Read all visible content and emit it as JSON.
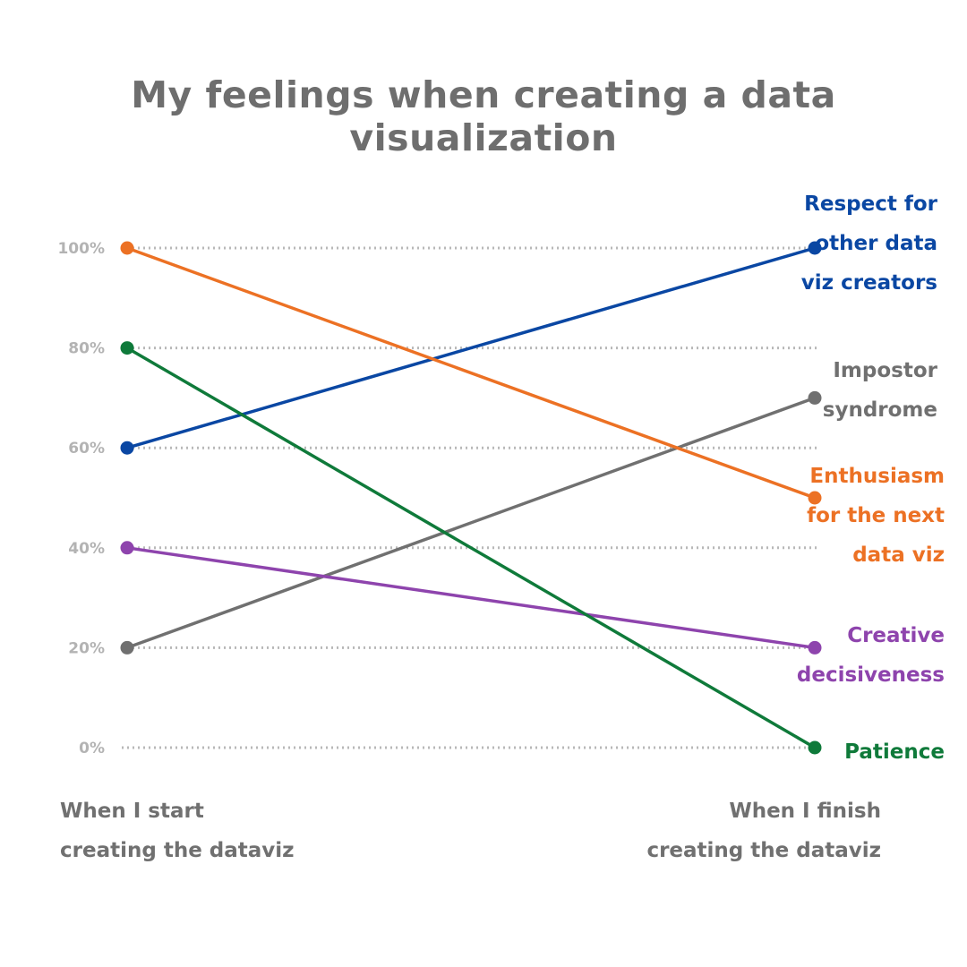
{
  "chart_data": {
    "type": "line",
    "title": "My feelings when creating a data visualization",
    "x": [
      "When I start creating the dataviz",
      "When I finish creating the dataviz"
    ],
    "x_label_lines": [
      [
        "When I start",
        "creating the dataviz"
      ],
      [
        "When I finish",
        "creating the dataviz"
      ]
    ],
    "ylim": [
      0,
      100
    ],
    "y_ticks": [
      0,
      20,
      40,
      60,
      80,
      100
    ],
    "y_tick_labels": [
      "0%",
      "20%",
      "40%",
      "60%",
      "80%",
      "100%"
    ],
    "grid": true,
    "series": [
      {
        "name": "Respect for other data viz creators",
        "label_lines": [
          "Respect for",
          "other data",
          "viz creators"
        ],
        "color": "#0a47a3",
        "values": [
          60,
          100
        ]
      },
      {
        "name": "Impostor syndrome",
        "label_lines": [
          "Impostor",
          "syndrome"
        ],
        "color": "#707070",
        "values": [
          20,
          70
        ]
      },
      {
        "name": "Enthusiasm for the next data viz",
        "label_lines": [
          "Enthusiasm",
          "for the next",
          "data viz"
        ],
        "color": "#ec7124",
        "values": [
          100,
          50
        ]
      },
      {
        "name": "Creative decisiveness",
        "label_lines": [
          "Creative",
          "decisiveness"
        ],
        "color": "#8e44ad",
        "values": [
          40,
          20
        ]
      },
      {
        "name": "Patience",
        "label_lines": [
          "Patience"
        ],
        "color": "#0f7a3a",
        "values": [
          80,
          0
        ]
      }
    ]
  }
}
